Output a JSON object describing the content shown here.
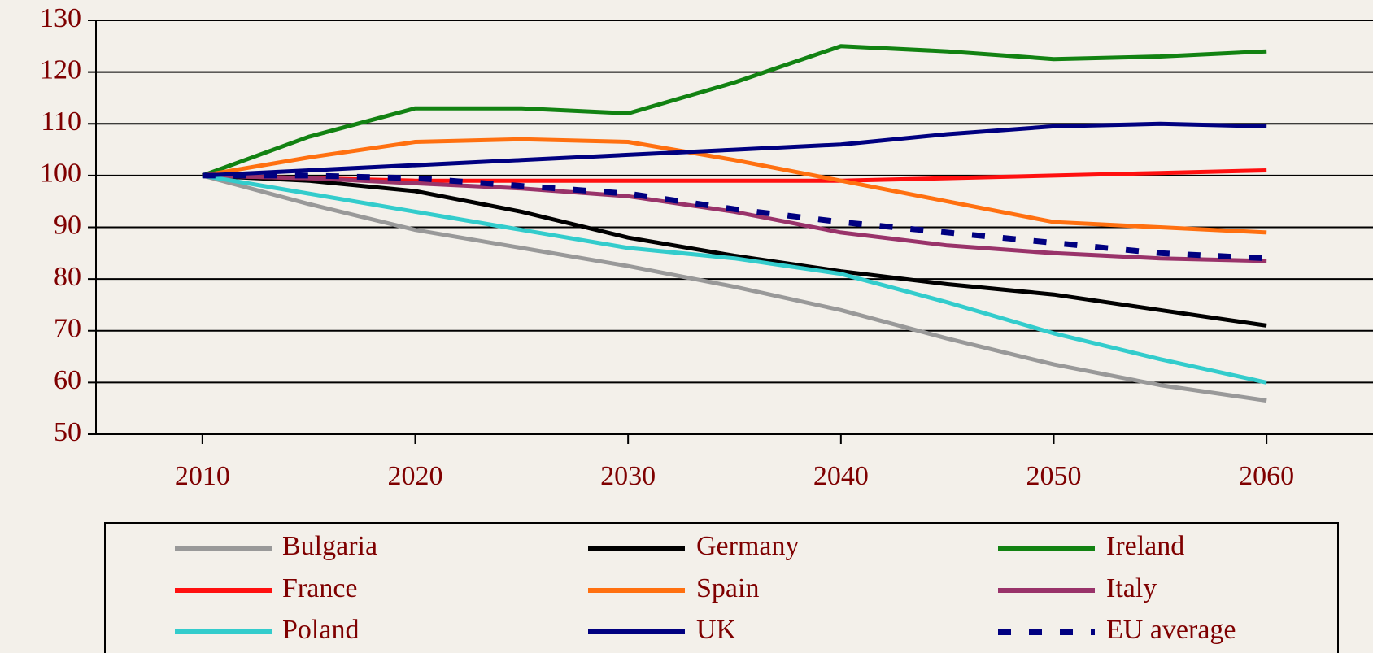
{
  "chart_data": {
    "type": "line",
    "x": [
      2010,
      2015,
      2020,
      2025,
      2030,
      2035,
      2040,
      2045,
      2050,
      2055,
      2060
    ],
    "xlim": [
      2005,
      2065
    ],
    "xticks": [
      2010,
      2020,
      2030,
      2040,
      2050,
      2060
    ],
    "ylim": [
      50,
      130
    ],
    "yticks": [
      50,
      60,
      70,
      80,
      90,
      100,
      110,
      120,
      130
    ],
    "grid": true,
    "legend": "bottom",
    "series": [
      {
        "name": "Bulgaria",
        "color": "#999999",
        "values": [
          100,
          94.5,
          89.5,
          86,
          82.5,
          78.5,
          74,
          68.5,
          63.5,
          59.5,
          56.5
        ]
      },
      {
        "name": "Germany",
        "color": "#000000",
        "values": [
          100,
          99,
          97,
          93,
          88,
          84.5,
          81.5,
          79,
          77,
          74,
          71
        ]
      },
      {
        "name": "Ireland",
        "color": "#128212",
        "values": [
          100,
          107.5,
          113,
          113,
          112,
          118,
          125,
          124,
          122.5,
          123,
          124
        ]
      },
      {
        "name": "France",
        "color": "#ff1010",
        "values": [
          100,
          99.5,
          99,
          99,
          99,
          99,
          99,
          99.5,
          100,
          100.5,
          101
        ]
      },
      {
        "name": "Spain",
        "color": "#ff7010",
        "values": [
          100,
          103.5,
          106.5,
          107,
          106.5,
          103,
          99,
          95,
          91,
          90,
          89
        ]
      },
      {
        "name": "Italy",
        "color": "#99336a",
        "values": [
          100,
          99.5,
          98.5,
          97.5,
          96,
          93,
          89,
          86.5,
          85,
          84,
          83.5
        ]
      },
      {
        "name": "Poland",
        "color": "#33cccc",
        "values": [
          100,
          96.5,
          93,
          89.5,
          86,
          84,
          81,
          75.5,
          69.5,
          64.5,
          60
        ]
      },
      {
        "name": "UK",
        "color": "#000080",
        "values": [
          100,
          101,
          102,
          103,
          104,
          105,
          106,
          108,
          109.5,
          110,
          109.5
        ]
      },
      {
        "name": "EU average",
        "color": "#000080",
        "style": "dashed",
        "values": [
          100,
          100,
          99.5,
          98,
          96.5,
          93.5,
          91,
          89,
          87,
          85,
          84
        ]
      }
    ]
  }
}
